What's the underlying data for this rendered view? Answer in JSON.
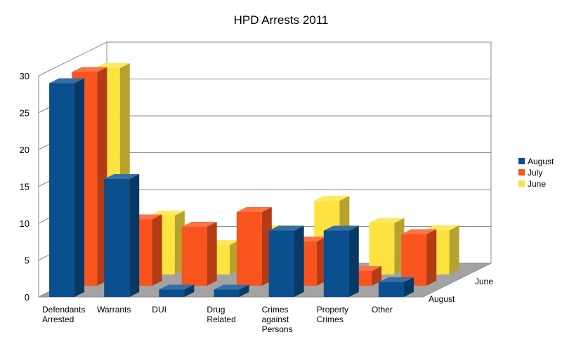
{
  "chart_data": {
    "type": "bar",
    "title": "HPD Arrests 2011",
    "categories": [
      "Defendants\nArrested",
      "Warrants",
      "DUI",
      "Drug\nRelated",
      "Crimes\nagainst\nPersons",
      "Property\nCrimes",
      "Other"
    ],
    "series": [
      {
        "name": "August",
        "color": "#0a4f8e",
        "values": [
          29,
          16,
          1,
          1,
          9,
          9,
          2
        ]
      },
      {
        "name": "July",
        "color": "#f9541e",
        "values": [
          29,
          9,
          8,
          10,
          6,
          2,
          7
        ]
      },
      {
        "name": "June",
        "color": "#fde33f",
        "values": [
          28,
          8,
          4,
          6,
          10,
          7,
          6
        ]
      }
    ],
    "depth_labels": [
      "August",
      "June"
    ],
    "yticks": [
      "0",
      "5",
      "10",
      "15",
      "20",
      "25",
      "30"
    ],
    "ylim": [
      0,
      30
    ],
    "grid": true,
    "legend": "right",
    "projection": "3d"
  }
}
